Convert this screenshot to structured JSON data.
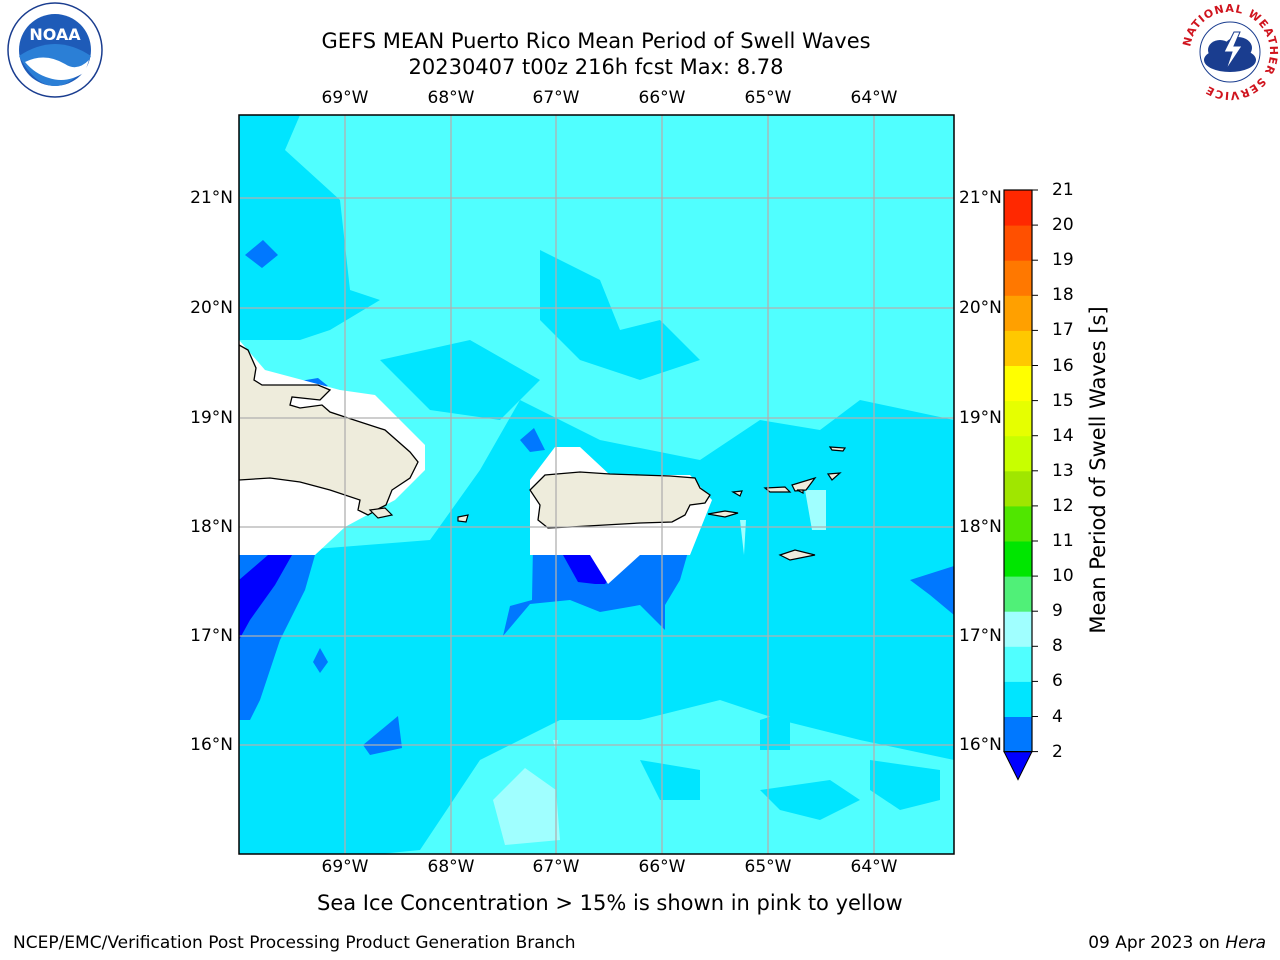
{
  "title": {
    "line1": "GEFS MEAN Puerto Rico Mean Period of Swell Waves",
    "line2": "20230407 t00z 216h fcst   Max: 8.78"
  },
  "logos": {
    "noaa_text": "NOAA",
    "noaa_ring": "NATIONAL OCEANIC AND ATMOSPHERIC ADMINISTRATION · U.S. DEPARTMENT OF COMMERCE",
    "nws_ring": "NATIONAL WEATHER SERVICE"
  },
  "map": {
    "lon_labels": [
      "69°W",
      "68°W",
      "67°W",
      "66°W",
      "65°W",
      "64°W"
    ],
    "lat_labels": [
      "21°N",
      "20°N",
      "19°N",
      "18°N",
      "17°N",
      "16°N"
    ],
    "land_color": "#eeecdc",
    "grid_color": "#b0b0b0"
  },
  "colorbar": {
    "title": "Mean Period of Swell Waves [s]",
    "ticks": [
      "2",
      "4",
      "6",
      "8",
      "9",
      "10",
      "11",
      "12",
      "13",
      "14",
      "15",
      "16",
      "17",
      "18",
      "19",
      "20",
      "21"
    ],
    "colors": [
      "#0000ff",
      "#0078ff",
      "#00e5ff",
      "#50ffff",
      "#a0ffff",
      "#50f078",
      "#00e600",
      "#50e600",
      "#a0e600",
      "#c8ff00",
      "#e6ff00",
      "#ffff00",
      "#ffc800",
      "#ffa000",
      "#ff7800",
      "#ff5000",
      "#ff2800",
      "#ff0000"
    ]
  },
  "ice_note": "Sea Ice Concentration > 15% is shown in pink to yellow",
  "footer": {
    "left": "NCEP/EMC/Verification Post Processing Product Generation Branch",
    "right_date": "09 Apr 2023 on",
    "right_host": "Hera"
  }
}
